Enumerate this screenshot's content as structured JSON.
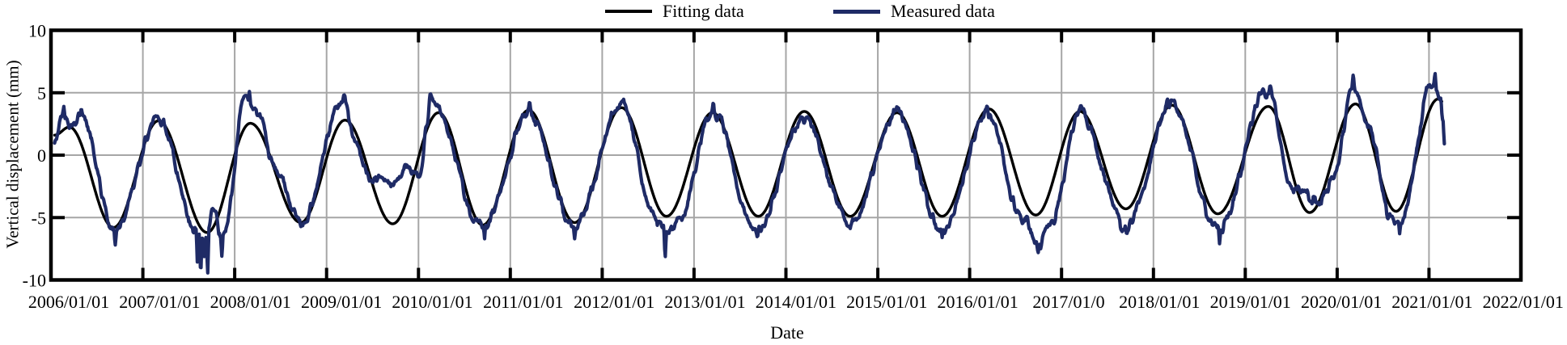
{
  "legend": {
    "items": [
      {
        "label": "Fitting data",
        "color": "#000000",
        "line_thickness": 4
      },
      {
        "label": "Measured data",
        "color": "#1f2b66",
        "line_thickness": 5
      }
    ]
  },
  "colors": {
    "grid": "#a6a6a6",
    "axis": "#000000",
    "background": "#ffffff"
  },
  "chart_data": {
    "type": "line",
    "title": "",
    "xlabel": "Date",
    "ylabel": "Vertical displacement (mm)",
    "xlim_years": [
      2006,
      2022
    ],
    "ylim": [
      -10,
      10
    ],
    "grid": true,
    "legend_position": "top-center",
    "x_ticks": [
      2006,
      2007,
      2008,
      2009,
      2010,
      2011,
      2012,
      2013,
      2014,
      2015,
      2016,
      2017,
      2018,
      2019,
      2020,
      2021,
      2022
    ],
    "x_tick_labels": [
      "2006/01/01",
      "2007/01/01",
      "2008/01/01",
      "2009/01/01",
      "2010/01/01",
      "2011/01/01",
      "2012/01/01",
      "2013/01/01",
      "2014/01/01",
      "2015/01/01",
      "2016/01/01",
      "2017/01/0",
      "2018/01/01",
      "2019/01/01",
      "2020/01/01",
      "2021/01/01",
      "2022/01/01"
    ],
    "y_ticks": [
      10,
      5,
      0,
      -5,
      -10
    ],
    "y_tick_labels": [
      "10",
      "5",
      "0",
      "-5",
      "-10"
    ],
    "series": [
      {
        "name": "Fitting data",
        "color": "#000000",
        "style": "smooth",
        "anchors_year_mm": [
          [
            2006.04,
            1.6
          ],
          [
            2006.2,
            2.25
          ],
          [
            2006.68,
            -5.8
          ],
          [
            2007.17,
            2.75
          ],
          [
            2007.7,
            -6.2
          ],
          [
            2008.17,
            2.55
          ],
          [
            2008.72,
            -5.4
          ],
          [
            2009.2,
            2.8
          ],
          [
            2009.72,
            -5.5
          ],
          [
            2010.22,
            3.4
          ],
          [
            2010.7,
            -5.6
          ],
          [
            2011.2,
            3.6
          ],
          [
            2011.7,
            -5.4
          ],
          [
            2012.21,
            3.8
          ],
          [
            2012.7,
            -4.9
          ],
          [
            2013.2,
            3.4
          ],
          [
            2013.7,
            -4.9
          ],
          [
            2014.2,
            3.5
          ],
          [
            2014.7,
            -4.9
          ],
          [
            2015.21,
            3.4
          ],
          [
            2015.7,
            -4.9
          ],
          [
            2016.21,
            3.7
          ],
          [
            2016.72,
            -4.8
          ],
          [
            2017.2,
            3.5
          ],
          [
            2017.7,
            -4.3
          ],
          [
            2018.2,
            4.0
          ],
          [
            2018.7,
            -4.7
          ],
          [
            2019.25,
            3.9
          ],
          [
            2019.7,
            -4.6
          ],
          [
            2020.2,
            4.1
          ],
          [
            2020.64,
            -4.5
          ],
          [
            2021.1,
            4.5
          ],
          [
            2021.14,
            4.3
          ]
        ]
      },
      {
        "name": "Measured data",
        "color": "#1f2b66",
        "style": "noisy",
        "noise": {
          "hf_amp": 0.42,
          "hf_freq": 40,
          "mf_amp": 0.3,
          "mf_freq": 9,
          "ff_amp": 0.15,
          "ff_freq": 120
        },
        "anchors_year_mm": [
          [
            2006.04,
            1.3
          ],
          [
            2006.14,
            3.0
          ],
          [
            2006.22,
            1.9
          ],
          [
            2006.33,
            3.0
          ],
          [
            2006.68,
            -6.0
          ],
          [
            2007.17,
            2.85
          ],
          [
            2007.57,
            -5.8
          ],
          [
            2007.67,
            -6.8
          ],
          [
            2007.76,
            -4.8
          ],
          [
            2007.87,
            -6.8
          ],
          [
            2008.12,
            4.4
          ],
          [
            2008.25,
            3.4
          ],
          [
            2008.45,
            -1.2
          ],
          [
            2008.72,
            -5.7
          ],
          [
            2009.17,
            4.4
          ],
          [
            2009.32,
            0.8
          ],
          [
            2009.5,
            -2.1
          ],
          [
            2009.62,
            -1.6
          ],
          [
            2009.75,
            -2.0
          ],
          [
            2009.9,
            -1.3
          ],
          [
            2010.0,
            -1.4
          ],
          [
            2010.15,
            4.2
          ],
          [
            2010.7,
            -5.8
          ],
          [
            2011.2,
            3.4
          ],
          [
            2011.7,
            -5.9
          ],
          [
            2012.21,
            4.0
          ],
          [
            2012.58,
            -5.3
          ],
          [
            2012.7,
            -6.3
          ],
          [
            2012.82,
            -5.4
          ],
          [
            2013.2,
            3.4
          ],
          [
            2013.68,
            -5.9
          ],
          [
            2014.2,
            2.9
          ],
          [
            2014.7,
            -5.6
          ],
          [
            2015.2,
            3.2
          ],
          [
            2015.7,
            -5.8
          ],
          [
            2016.2,
            3.7
          ],
          [
            2016.58,
            -5.2
          ],
          [
            2016.74,
            -7.2
          ],
          [
            2016.88,
            -5.6
          ],
          [
            2017.2,
            3.3
          ],
          [
            2017.7,
            -5.7
          ],
          [
            2018.2,
            4.2
          ],
          [
            2018.7,
            -6.0
          ],
          [
            2019.25,
            5.3
          ],
          [
            2019.5,
            -2.6
          ],
          [
            2019.65,
            -3.3
          ],
          [
            2019.8,
            -3.4
          ],
          [
            2019.95,
            -2.2
          ],
          [
            2020.17,
            5.5
          ],
          [
            2020.35,
            2.0
          ],
          [
            2020.58,
            -5.2
          ],
          [
            2020.68,
            -5.3
          ],
          [
            2021.02,
            5.3
          ],
          [
            2021.08,
            5.5
          ],
          [
            2021.12,
            4.6
          ],
          [
            2021.15,
            3.3
          ],
          [
            2021.17,
            1.2
          ]
        ],
        "spikes_year_mm": [
          [
            2006.14,
            3.9
          ],
          [
            2006.33,
            3.8
          ],
          [
            2006.7,
            -7.2
          ],
          [
            2007.595,
            -8.9
          ],
          [
            2007.63,
            -9.8
          ],
          [
            2007.665,
            -8.3
          ],
          [
            2007.705,
            -9.9
          ],
          [
            2007.86,
            -8.1
          ],
          [
            2008.16,
            5.1
          ],
          [
            2009.19,
            4.9
          ],
          [
            2010.13,
            5.0
          ],
          [
            2010.72,
            -6.7
          ],
          [
            2011.21,
            4.4
          ],
          [
            2011.7,
            -6.7
          ],
          [
            2012.21,
            4.3
          ],
          [
            2012.685,
            -8.4
          ],
          [
            2013.21,
            4.3
          ],
          [
            2013.69,
            -6.7
          ],
          [
            2015.21,
            3.9
          ],
          [
            2015.7,
            -6.6
          ],
          [
            2016.19,
            4.1
          ],
          [
            2016.745,
            -7.9
          ],
          [
            2017.21,
            4.0
          ],
          [
            2017.71,
            -6.4
          ],
          [
            2018.72,
            -7.1
          ],
          [
            2019.27,
            5.6
          ],
          [
            2020.175,
            6.5
          ],
          [
            2020.68,
            -6.3
          ],
          [
            2021.065,
            6.7
          ]
        ]
      }
    ]
  }
}
